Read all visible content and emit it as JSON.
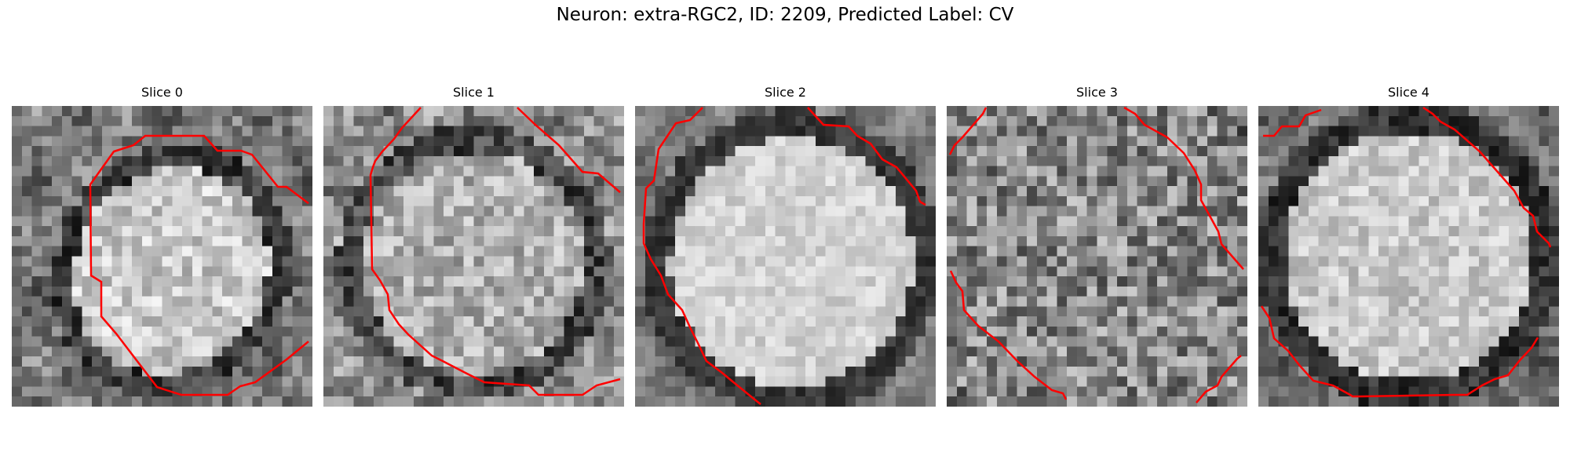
{
  "figure": {
    "title": "Neuron: extra-RGC2, ID: 2209, Predicted Label: CV",
    "contour_color": "#ff0000",
    "colormap": "gray"
  },
  "slices": [
    {
      "title": "Slice 0"
    },
    {
      "title": "Slice 1"
    },
    {
      "title": "Slice 2"
    },
    {
      "title": "Slice 3"
    },
    {
      "title": "Slice 4"
    }
  ]
}
